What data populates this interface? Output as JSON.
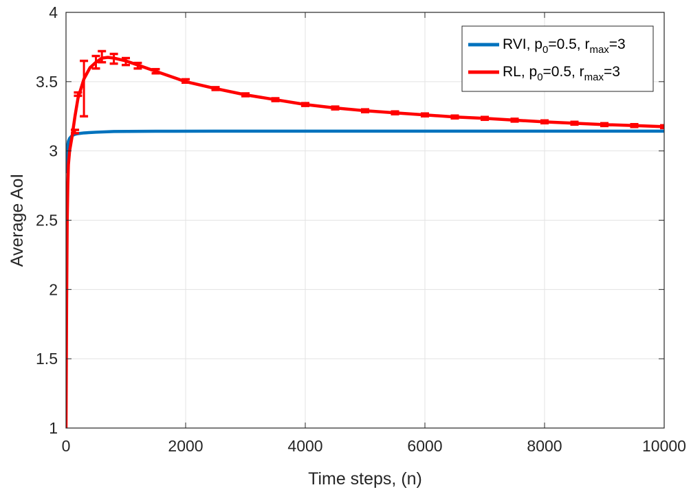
{
  "chart_data": {
    "type": "line",
    "xlabel": "Time steps, (n)",
    "ylabel": "Average AoI",
    "xlim": [
      0,
      10000
    ],
    "ylim": [
      1,
      4
    ],
    "xticks": [
      0,
      2000,
      4000,
      6000,
      8000,
      10000
    ],
    "xtick_labels": [
      "0",
      "2000",
      "4000",
      "6000",
      "8000",
      "10000"
    ],
    "yticks": [
      1,
      1.5,
      2,
      2.5,
      3,
      3.5,
      4
    ],
    "ytick_labels": [
      "1",
      "1.5",
      "2",
      "2.5",
      "3",
      "3.5",
      "4"
    ],
    "grid": true,
    "legend_position": "top-right",
    "series": [
      {
        "name": "RVI, p0=0.5, rmax=3",
        "legend": {
          "a": "RVI, p",
          "b": "0",
          "c": "=0.5, r",
          "d": "max",
          "e": "=3"
        },
        "color": "#0072BD",
        "x": [
          0,
          10,
          20,
          40,
          60,
          80,
          100,
          150,
          200,
          300,
          500,
          800,
          1500,
          2500,
          4000,
          6000,
          8000,
          10000
        ],
        "y": [
          2.85,
          2.96,
          3.02,
          3.07,
          3.09,
          3.1,
          3.11,
          3.12,
          3.125,
          3.13,
          3.135,
          3.14,
          3.142,
          3.143,
          3.143,
          3.143,
          3.143,
          3.143
        ]
      },
      {
        "name": "RL, p0=0.5, rmax=3",
        "legend": {
          "a": "RL, p",
          "b": "0",
          "c": "=0.5, r",
          "d": "max",
          "e": "=3"
        },
        "color": "#FF0000",
        "x": [
          0,
          10,
          20,
          30,
          40,
          60,
          80,
          100,
          150,
          200,
          300,
          400,
          500,
          600,
          700,
          800,
          1000,
          1200,
          1500,
          2000,
          2500,
          3000,
          3500,
          4000,
          4500,
          5000,
          5500,
          6000,
          6500,
          7000,
          7500,
          8000,
          8500,
          9000,
          9500,
          10000
        ],
        "y": [
          1.0,
          1.9,
          2.5,
          2.75,
          2.9,
          3.0,
          3.05,
          3.1,
          3.25,
          3.38,
          3.52,
          3.6,
          3.64,
          3.67,
          3.675,
          3.67,
          3.65,
          3.62,
          3.575,
          3.5,
          3.45,
          3.405,
          3.37,
          3.335,
          3.31,
          3.29,
          3.275,
          3.26,
          3.245,
          3.235,
          3.222,
          3.21,
          3.2,
          3.19,
          3.183,
          3.175
        ],
        "error_bars": {
          "x": [
            150,
            200,
            300,
            500,
            600,
            800,
            1000,
            1200,
            1500,
            2000,
            2500,
            3000,
            3500,
            4000,
            4500,
            5000,
            5500,
            6000,
            6500,
            7000,
            7500,
            8000,
            8500,
            9000,
            9500,
            10000
          ],
          "y": [
            3.14,
            3.41,
            3.45,
            3.64,
            3.68,
            3.665,
            3.645,
            3.615,
            3.575,
            3.505,
            3.45,
            3.405,
            3.37,
            3.335,
            3.31,
            3.29,
            3.275,
            3.26,
            3.245,
            3.235,
            3.222,
            3.21,
            3.2,
            3.19,
            3.183,
            3.175
          ],
          "err": [
            0.012,
            0.012,
            0.2,
            0.045,
            0.04,
            0.035,
            0.025,
            0.02,
            0.015,
            0.012,
            0.01,
            0.01,
            0.01,
            0.01,
            0.01,
            0.01,
            0.01,
            0.01,
            0.01,
            0.01,
            0.01,
            0.01,
            0.01,
            0.01,
            0.01,
            0.01
          ]
        }
      }
    ]
  }
}
